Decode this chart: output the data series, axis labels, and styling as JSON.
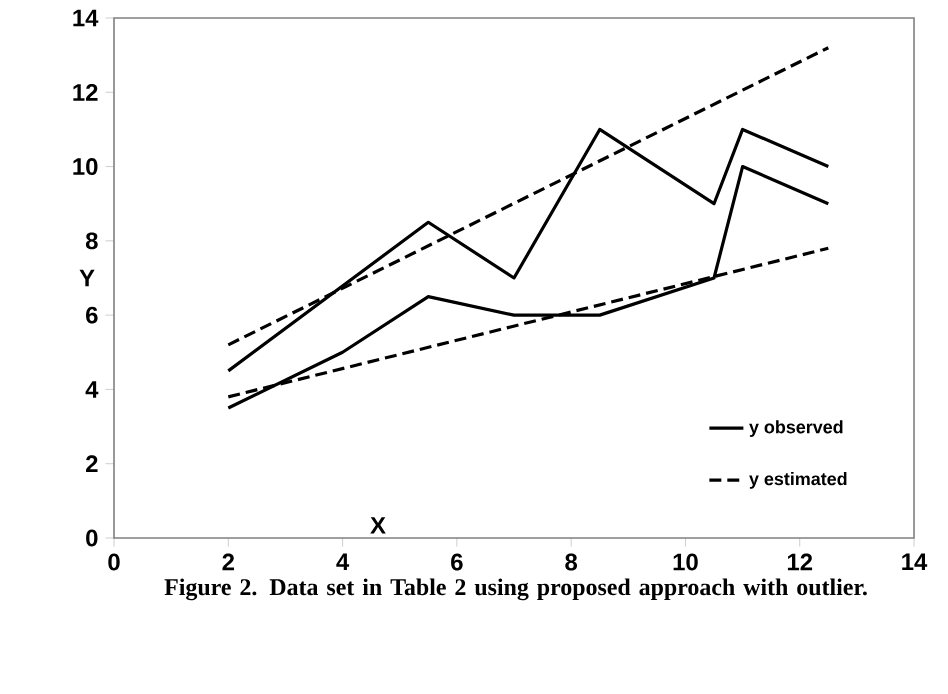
{
  "chart_data": {
    "type": "line",
    "xlabel": "X",
    "ylabel": "Y",
    "annotations": [
      "Figure 2. Data set in Table 2 using proposed approach with outlier."
    ],
    "xlim": [
      0,
      14
    ],
    "xticks": [
      0,
      2,
      4,
      6,
      8,
      10,
      12,
      14
    ],
    "ylim": [
      0,
      14
    ],
    "yticks": [
      0,
      2,
      4,
      6,
      8,
      10,
      12,
      14
    ],
    "grid": false,
    "legend": "bottom right",
    "marker": "none",
    "series": [
      {
        "name": "y observed",
        "color": "#000000",
        "line_style": "solid",
        "x": [
          2,
          5.5,
          7,
          8.5,
          10.5,
          11,
          12.5
        ],
        "values": [
          4.5,
          8.5,
          7,
          11,
          9,
          11,
          10
        ]
      },
      {
        "color": "#000000",
        "line_style": "solid",
        "x": [
          2,
          4,
          5.5,
          7,
          8.5,
          10.5,
          11,
          12.5
        ],
        "values": [
          3.5,
          5,
          6.5,
          6,
          6,
          7,
          10,
          9
        ]
      },
      {
        "name": "y estimated",
        "color": "#000000",
        "line_style": "dashed",
        "x": [
          2,
          12.5
        ],
        "values": [
          5.2,
          13.2
        ]
      },
      {
        "color": "#000000",
        "line_style": "dashed",
        "x": [
          2,
          12.5
        ],
        "values": [
          3.8,
          7.8
        ]
      }
    ]
  }
}
